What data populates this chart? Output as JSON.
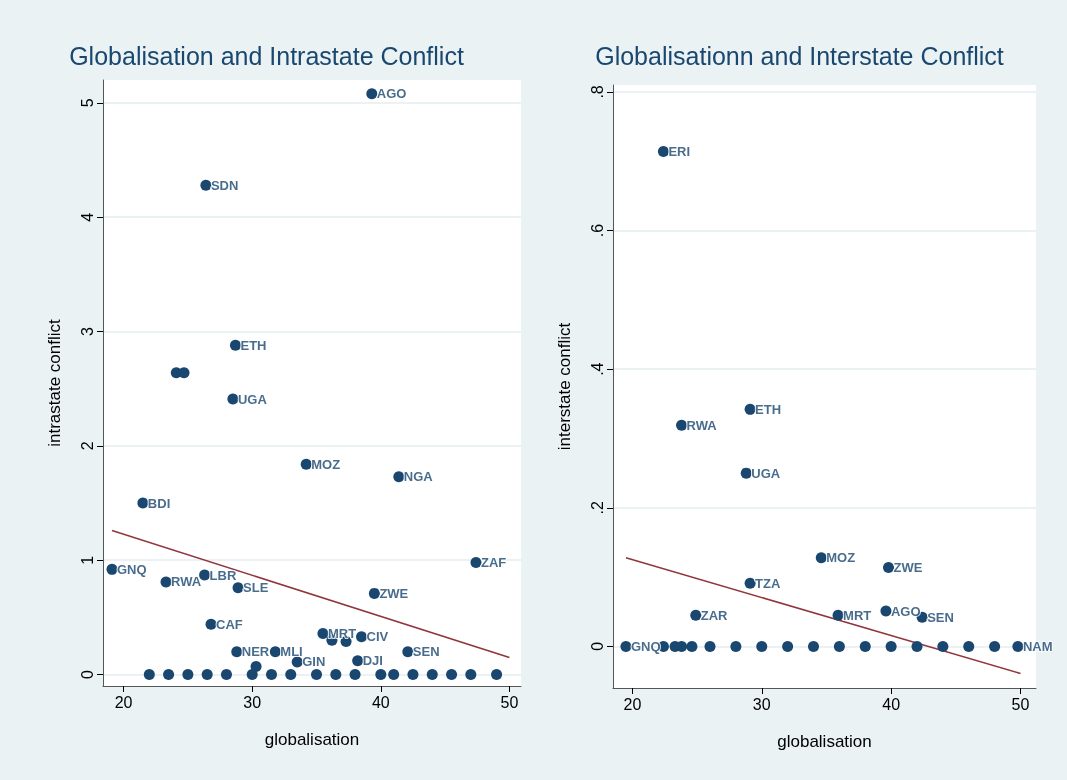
{
  "chart_data": [
    {
      "type": "scatter",
      "title": "Globalisation and Intrastate Conflict",
      "xlabel": "globalisation",
      "ylabel": "intrastate conflict",
      "grid": "y",
      "xlim": [
        18.4,
        50.9
      ],
      "xticks": [
        20,
        30,
        40,
        50
      ],
      "ylim": [
        -0.1,
        5.2
      ],
      "yticks": [
        0,
        1,
        2,
        3,
        4,
        5
      ],
      "series": [
        {
          "color": "#1a476f",
          "marker": "circle",
          "x": [
            39.3,
            26.4,
            28.7,
            24.1,
            24.7,
            28.5,
            34.2,
            41.4,
            21.5,
            47.4,
            19.1,
            23.3,
            26.3,
            28.9,
            39.5,
            26.8,
            35.5,
            36.2,
            37.3,
            38.5,
            28.8,
            31.8,
            33.5,
            30.3,
            38.2,
            42.1,
            22.0,
            23.5,
            25,
            26.5,
            28,
            30,
            31.5,
            33,
            35,
            36.5,
            38,
            40,
            41,
            42.5,
            44,
            45.5,
            47,
            49
          ],
          "values": [
            5.08,
            4.28,
            2.88,
            2.64,
            2.64,
            2.41,
            1.84,
            1.73,
            1.5,
            0.98,
            0.92,
            0.81,
            0.87,
            0.76,
            0.71,
            0.44,
            0.36,
            0.3,
            0.29,
            0.33,
            0.2,
            0.2,
            0.11,
            0.07,
            0.12,
            0.2,
            0,
            0,
            0,
            0,
            0,
            0,
            0,
            0,
            0,
            0,
            0,
            0,
            0,
            0,
            0,
            0,
            0,
            0
          ]
        },
        {
          "type": "line",
          "marker": "none",
          "color": "#90353b",
          "x": [
            19.1,
            50
          ],
          "values": [
            1.26,
            0.15
          ]
        }
      ],
      "annotations": [
        {
          "text": "AGO",
          "x": 39.3,
          "y": 5.08
        },
        {
          "text": "SDN",
          "x": 26.4,
          "y": 4.28
        },
        {
          "text": "ETH",
          "x": 28.7,
          "y": 2.88
        },
        {
          "text": "UGA",
          "x": 28.5,
          "y": 2.41
        },
        {
          "text": "MOZ",
          "x": 34.2,
          "y": 1.84
        },
        {
          "text": "NGA",
          "x": 41.4,
          "y": 1.73
        },
        {
          "text": "BDI",
          "x": 21.5,
          "y": 1.5
        },
        {
          "text": "ZAF",
          "x": 47.4,
          "y": 0.98
        },
        {
          "text": "GNQ",
          "x": 19.1,
          "y": 0.92
        },
        {
          "text": "RWA",
          "x": 23.3,
          "y": 0.81
        },
        {
          "text": "LBR",
          "x": 26.3,
          "y": 0.87
        },
        {
          "text": "SLE",
          "x": 28.9,
          "y": 0.76
        },
        {
          "text": "ZWE",
          "x": 39.5,
          "y": 0.71
        },
        {
          "text": "CAF",
          "x": 26.8,
          "y": 0.44
        },
        {
          "text": "MRT",
          "x": 35.5,
          "y": 0.36
        },
        {
          "text": "CIV",
          "x": 38.5,
          "y": 0.33
        },
        {
          "text": "NER",
          "x": 28.8,
          "y": 0.2
        },
        {
          "text": "MLI",
          "x": 31.8,
          "y": 0.2
        },
        {
          "text": "GIN",
          "x": 33.5,
          "y": 0.11
        },
        {
          "text": "DJI",
          "x": 38.2,
          "y": 0.12
        },
        {
          "text": "SEN",
          "x": 42.1,
          "y": 0.2
        }
      ]
    },
    {
      "type": "scatter",
      "title": "Globalisationn and Interstate Conflict",
      "xlabel": "globalisation",
      "ylabel": "interstate conflict",
      "grid": "y",
      "xlim": [
        18.5,
        51.2
      ],
      "xticks": [
        20,
        30,
        40,
        50
      ],
      "ylim": [
        -0.06,
        0.81
      ],
      "yticks": [
        {
          "value": 0,
          "label": "0"
        },
        {
          "value": 0.2,
          "label": ".2"
        },
        {
          "value": 0.4,
          "label": ".4"
        },
        {
          "value": 0.6,
          "label": ".6"
        },
        {
          "value": 0.8,
          "label": ".8"
        }
      ],
      "series": [
        {
          "color": "#1a476f",
          "marker": "circle",
          "x": [
            22.4,
            23.8,
            29.1,
            28.8,
            34.6,
            39.8,
            29.1,
            24.9,
            35.9,
            39.6,
            42.4,
            19.5,
            22.4,
            23.3,
            23.8,
            24.6,
            26,
            28,
            30,
            32,
            34,
            36,
            38,
            40,
            42,
            44,
            46,
            48,
            49.8
          ],
          "values": [
            0.714,
            0.319,
            0.342,
            0.25,
            0.128,
            0.114,
            0.091,
            0.045,
            0.045,
            0.051,
            0.042,
            0,
            0,
            0,
            0,
            0,
            0,
            0,
            0,
            0,
            0,
            0,
            0,
            0,
            0,
            0,
            0,
            0,
            0
          ]
        },
        {
          "type": "line",
          "marker": "none",
          "color": "#90353b",
          "x": [
            19.5,
            50
          ],
          "values": [
            0.128,
            -0.039
          ]
        }
      ],
      "annotations": [
        {
          "text": "ERI",
          "x": 22.4,
          "y": 0.714
        },
        {
          "text": "RWA",
          "x": 23.8,
          "y": 0.319
        },
        {
          "text": "ETH",
          "x": 29.1,
          "y": 0.342
        },
        {
          "text": "UGA",
          "x": 28.8,
          "y": 0.25
        },
        {
          "text": "MOZ",
          "x": 34.6,
          "y": 0.128
        },
        {
          "text": "ZWE",
          "x": 39.8,
          "y": 0.114
        },
        {
          "text": "TZA",
          "x": 29.1,
          "y": 0.091
        },
        {
          "text": "ZAR",
          "x": 24.9,
          "y": 0.045
        },
        {
          "text": "MRT",
          "x": 35.9,
          "y": 0.045
        },
        {
          "text": "AGO",
          "x": 39.6,
          "y": 0.051
        },
        {
          "text": "SEN",
          "x": 42.4,
          "y": 0.042
        },
        {
          "text": "GNQ",
          "x": 19.5,
          "y": 0
        },
        {
          "text": "NAM",
          "x": 49.8,
          "y": 0
        }
      ]
    }
  ]
}
